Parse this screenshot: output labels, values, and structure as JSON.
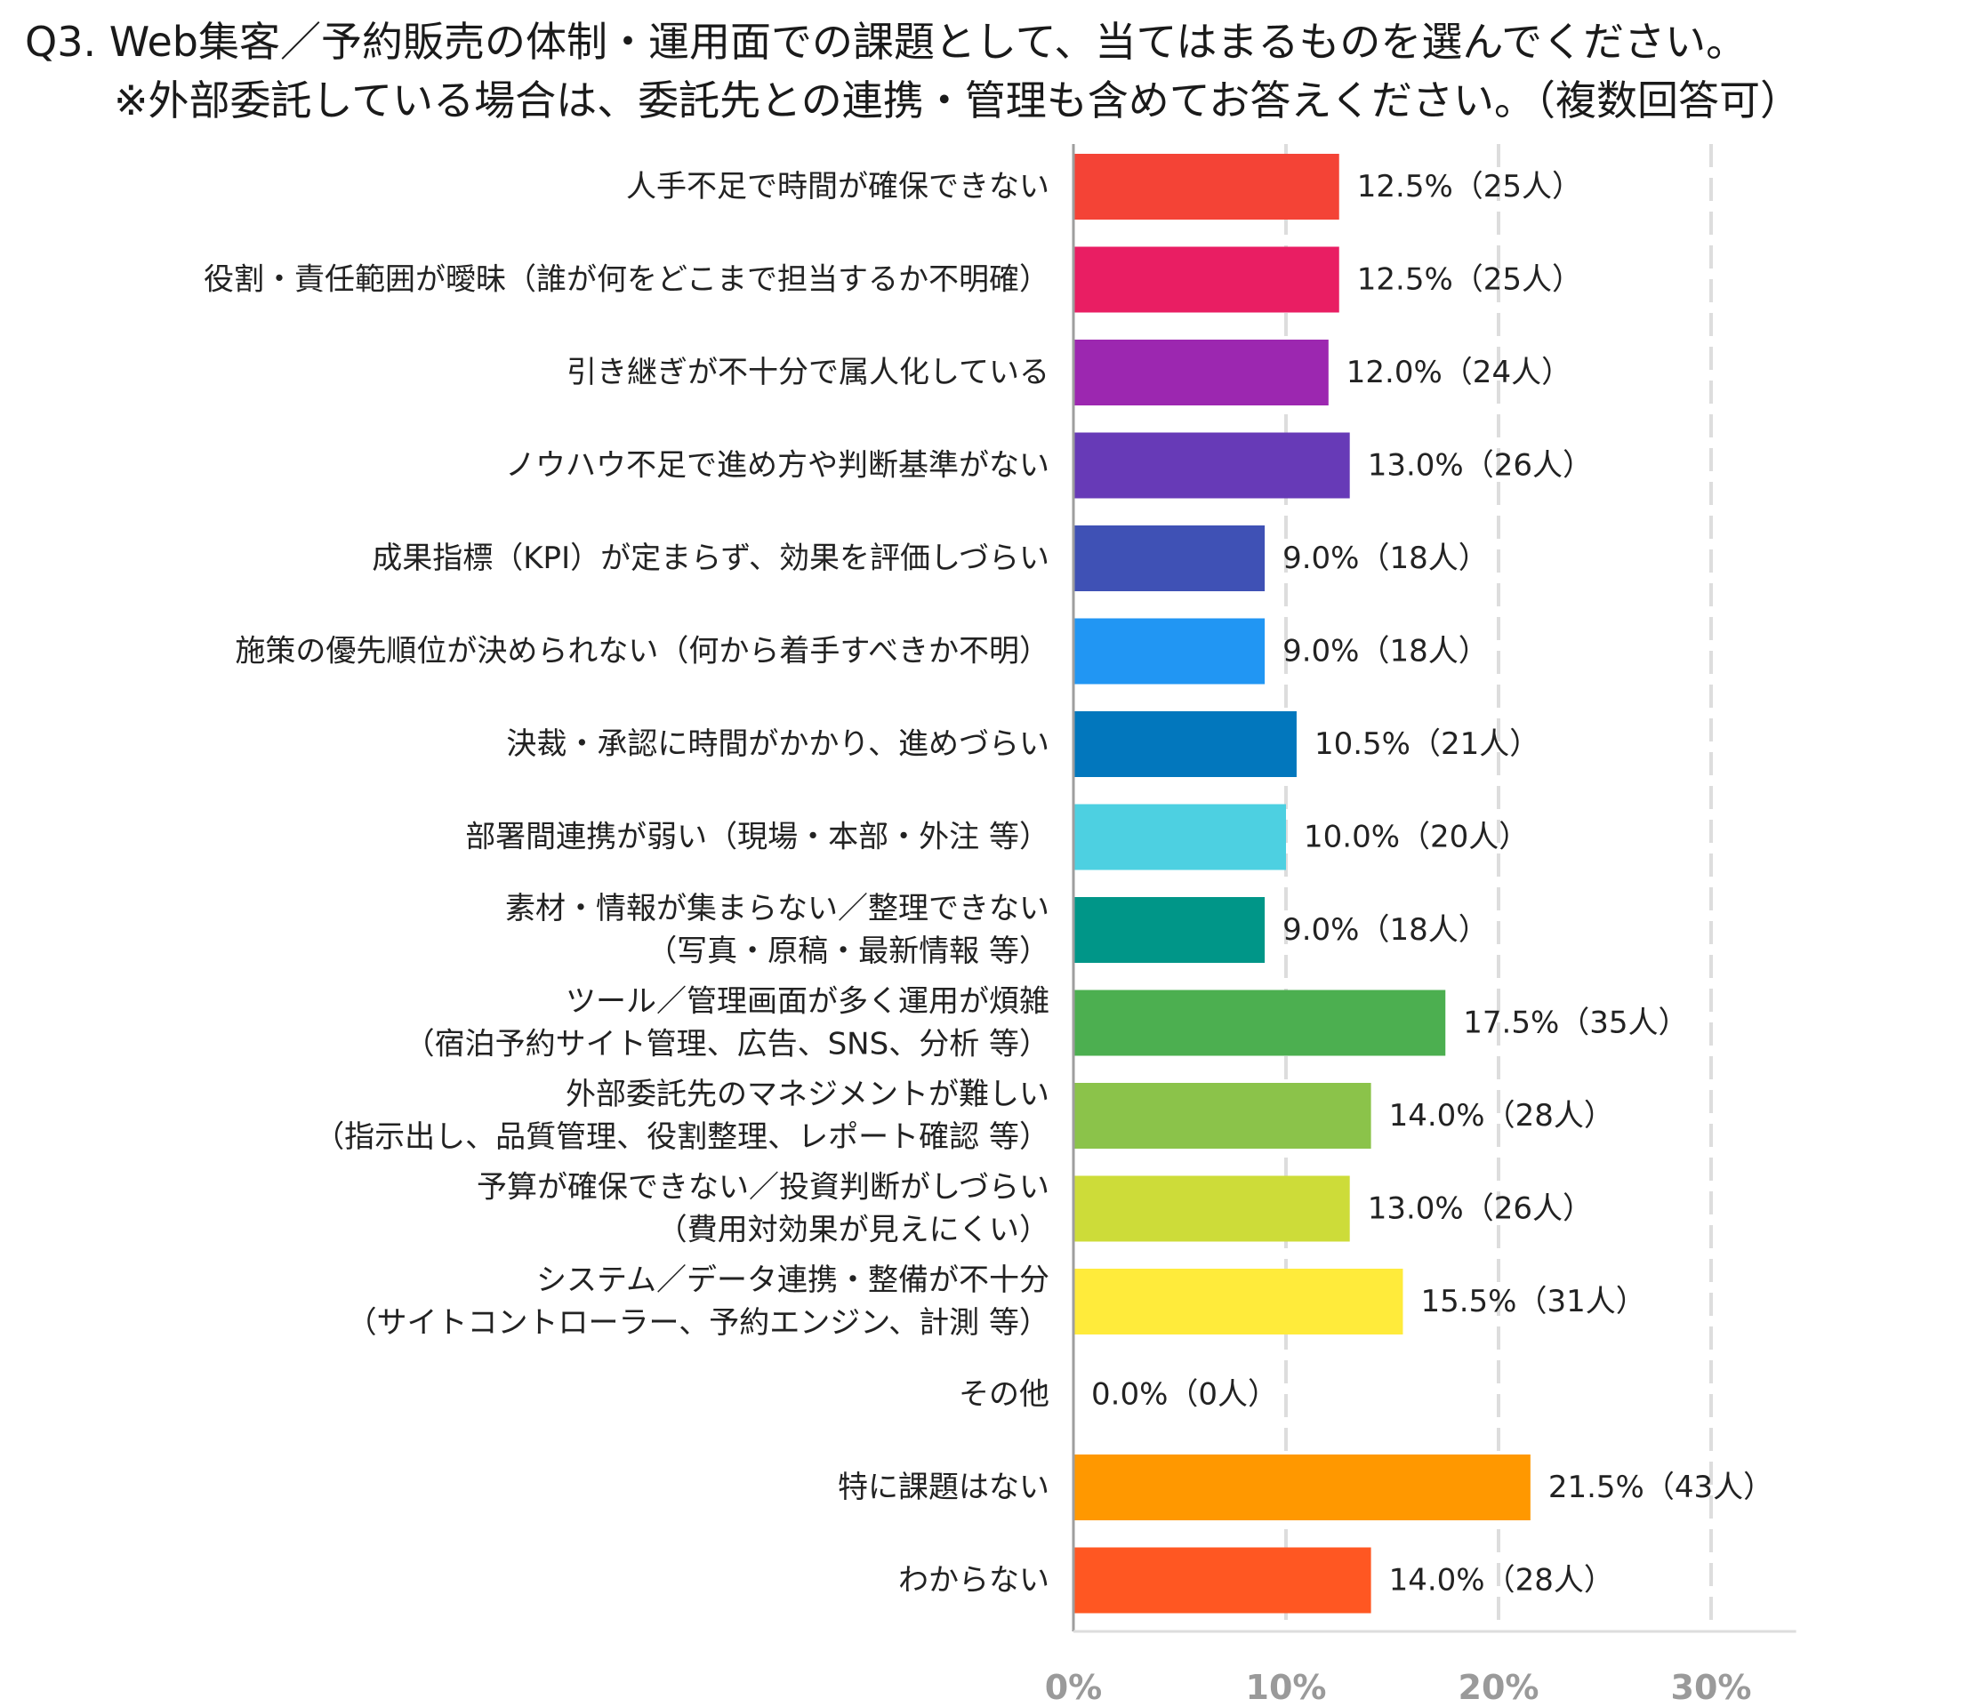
{
  "title": {
    "line1": "Q3. Web集客／予約販売の体制・運用面での課題として、当てはまるものを選んでください。",
    "line2": "※外部委託している場合は、委託先との連携・管理も含めてお答えください。（複数回答可）"
  },
  "chart_data": {
    "type": "bar",
    "orientation": "horizontal",
    "xlim": [
      0,
      34
    ],
    "ticks": [
      0,
      10,
      20,
      30
    ],
    "tick_labels": [
      "0%",
      "10%",
      "20%",
      "30%"
    ],
    "grid": true,
    "legend": "none",
    "categories": [
      [
        "人手不足で時間が確保できない"
      ],
      [
        "役割・責任範囲が曖昧（誰が何をどこまで担当するか不明確）"
      ],
      [
        "引き継ぎが不十分で属人化している"
      ],
      [
        "ノウハウ不足で進め方や判断基準がない"
      ],
      [
        "成果指標（KPI）が定まらず、効果を評価しづらい"
      ],
      [
        "施策の優先順位が決められない（何から着手すべきか不明）"
      ],
      [
        "決裁・承認に時間がかかり、進めづらい"
      ],
      [
        "部署間連携が弱い（現場・本部・外注 等）"
      ],
      [
        "素材・情報が集まらない／整理できない",
        "（写真・原稿・最新情報 等）"
      ],
      [
        "ツール／管理画面が多く運用が煩雑",
        "（宿泊予約サイト管理、広告、SNS、分析 等）"
      ],
      [
        "外部委託先のマネジメントが難しい",
        "（指示出し、品質管理、役割整理、レポート確認 等）"
      ],
      [
        "予算が確保できない／投資判断がしづらい",
        "（費用対効果が見えにくい）"
      ],
      [
        "システム／データ連携・整備が不十分",
        "（サイトコントローラー、予約エンジン、計測 等）"
      ],
      [
        "その他"
      ],
      [
        "特に課題はない"
      ],
      [
        "わからない"
      ]
    ],
    "values": [
      12.5,
      12.5,
      12.0,
      13.0,
      9.0,
      9.0,
      10.5,
      10.0,
      9.0,
      17.5,
      14.0,
      13.0,
      15.5,
      0.0,
      21.5,
      14.0
    ],
    "data_labels": [
      "12.5%（25人）",
      "12.5%（25人）",
      "12.0%（24人）",
      "13.0%（26人）",
      "9.0%（18人）",
      "9.0%（18人）",
      "10.5%（21人）",
      "10.0%（20人）",
      "9.0%（18人）",
      "17.5%（35人）",
      "14.0%（28人）",
      "13.0%（26人）",
      "15.5%（31人）",
      "0.0%（0人）",
      "21.5%（43人）",
      "14.0%（28人）"
    ],
    "colors": [
      "#f44336",
      "#e91e63",
      "#9c27b0",
      "#673ab7",
      "#3f51b5",
      "#2196f3",
      "#0277bd",
      "#4dd0e1",
      "#009688",
      "#4caf50",
      "#8bc34a",
      "#cddc39",
      "#ffeb3b",
      "#9e9e9e",
      "#ff9800",
      "#ff5722"
    ],
    "axis_color": "#9e9e9e",
    "grid_color": "#dddddd"
  }
}
